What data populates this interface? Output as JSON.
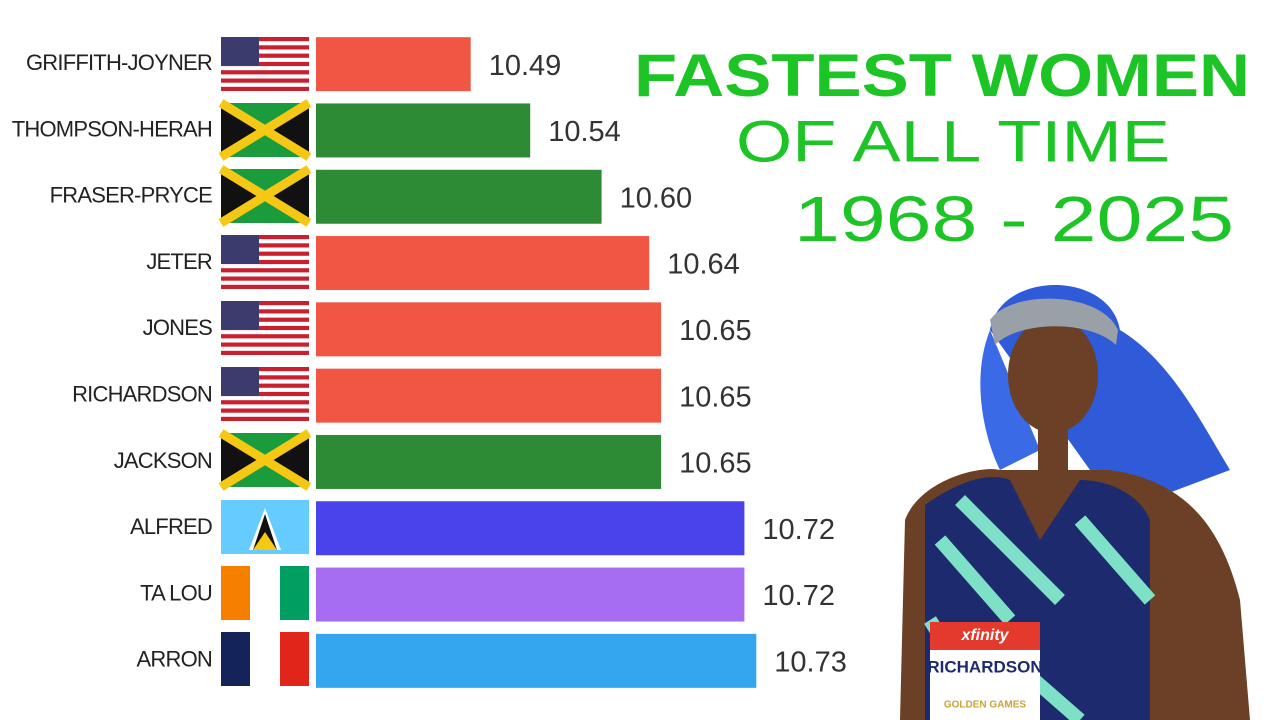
{
  "chart_data": {
    "type": "bar",
    "orientation": "horizontal",
    "title": [
      "FASTEST WOMEN",
      "OF ALL TIME",
      "1968 - 2025"
    ],
    "title_color": "#1cc425",
    "categories": [
      "GRIFFITH-JOYNER",
      "THOMPSON-HERAH",
      "FRASER-PRYCE",
      "JETER",
      "JONES",
      "RICHARDSON",
      "JACKSON",
      "ALFRED",
      "TA LOU",
      "ARRON"
    ],
    "values": [
      10.49,
      10.54,
      10.6,
      10.64,
      10.65,
      10.65,
      10.65,
      10.72,
      10.72,
      10.73
    ],
    "value_labels": [
      "10.49",
      "10.54",
      "10.60",
      "10.64",
      "10.65",
      "10.65",
      "10.65",
      "10.72",
      "10.72",
      "10.73"
    ],
    "colors": [
      "#f15645",
      "#2e8b35",
      "#2e8b35",
      "#f15645",
      "#f15645",
      "#f15645",
      "#2e8b35",
      "#4a42ea",
      "#a66cf2",
      "#34a6f0"
    ],
    "xlim": [
      10.36,
      10.76
    ]
  },
  "photo": {
    "sponsor": "xfinity",
    "bib": "RICHARDSON",
    "meet": "GOLDEN GAMES"
  }
}
